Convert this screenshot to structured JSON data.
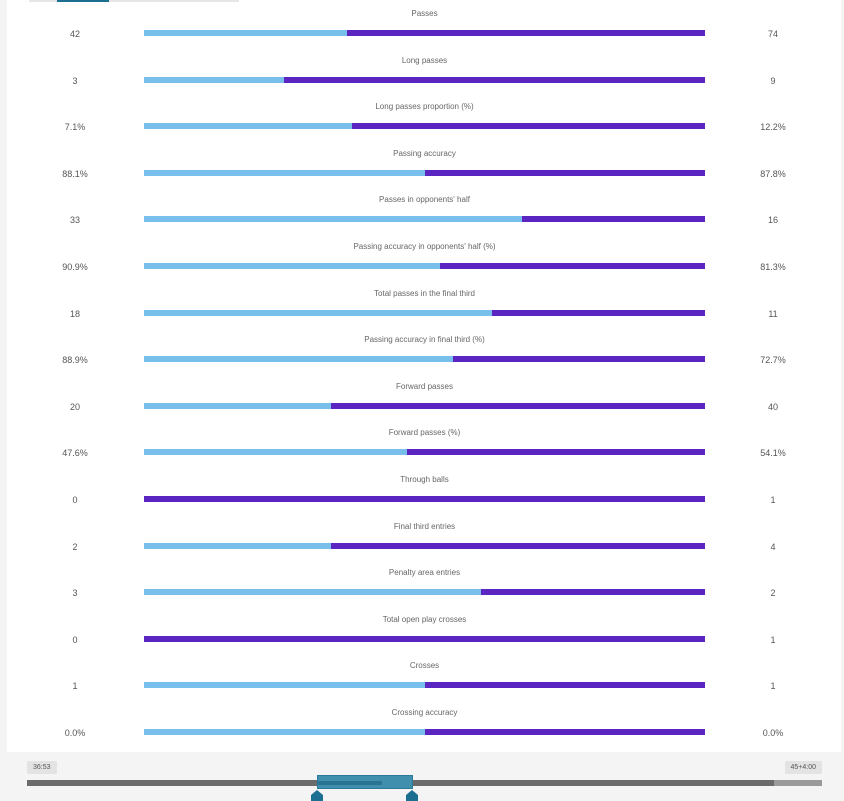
{
  "colors": {
    "home": "#78bfeb",
    "away": "#5b25c1",
    "accent": "#1d6f92"
  },
  "stats": [
    {
      "label": "Passes",
      "home": "42",
      "away": "74",
      "home_share": 0.3621
    },
    {
      "label": "Long passes",
      "home": "3",
      "away": "9",
      "home_share": 0.25
    },
    {
      "label": "Long passes proportion (%)",
      "home": "7.1%",
      "away": "12.2%",
      "home_share": 0.3699
    },
    {
      "label": "Passing accuracy",
      "home": "88.1%",
      "away": "87.8%",
      "home_share": 0.5009
    },
    {
      "label": "Passes in opponents' half",
      "home": "33",
      "away": "16",
      "home_share": 0.6735
    },
    {
      "label": "Passing accuracy in opponents' half (%)",
      "home": "90.9%",
      "away": "81.3%",
      "home_share": 0.5279
    },
    {
      "label": "Total passes in the final third",
      "home": "18",
      "away": "11",
      "home_share": 0.6207
    },
    {
      "label": "Passing accuracy in final third (%)",
      "home": "88.9%",
      "away": "72.7%",
      "home_share": 0.5501
    },
    {
      "label": "Forward passes",
      "home": "20",
      "away": "40",
      "home_share": 0.3333
    },
    {
      "label": "Forward passes (%)",
      "home": "47.6%",
      "away": "54.1%",
      "home_share": 0.468
    },
    {
      "label": "Through balls",
      "home": "0",
      "away": "1",
      "home_share": 0
    },
    {
      "label": "Final third entries",
      "home": "2",
      "away": "4",
      "home_share": 0.3333
    },
    {
      "label": "Penalty area entries",
      "home": "3",
      "away": "2",
      "home_share": 0.6
    },
    {
      "label": "Total open play crosses",
      "home": "0",
      "away": "1",
      "home_share": 0
    },
    {
      "label": "Crosses",
      "home": "1",
      "away": "1",
      "home_share": 0.5
    },
    {
      "label": "Crossing accuracy",
      "home": "0.0%",
      "away": "0.0%",
      "home_share": 0.5
    }
  ],
  "timeline": {
    "start_label": "36:53",
    "end_label": "45+4:00"
  }
}
